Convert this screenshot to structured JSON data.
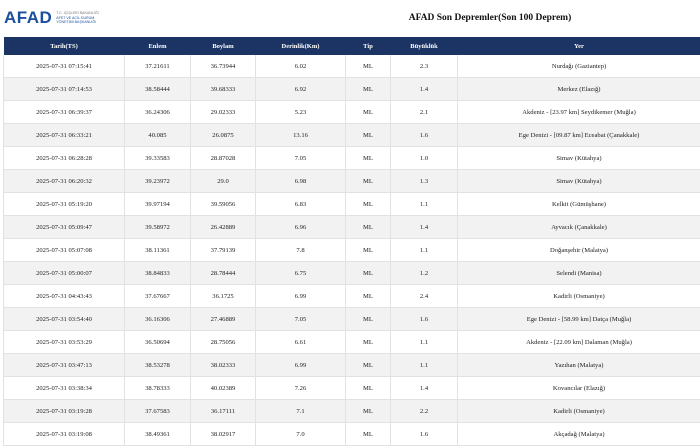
{
  "header": {
    "logo": {
      "mark": "AFAD",
      "lines": [
        "T.C. İÇİŞLERİ BAKANLIĞI",
        "AFET VE ACİL DURUM",
        "YÖNETİMİ BAŞKANLIĞI"
      ]
    },
    "title": "AFAD Son Depremler(Son 100 Deprem)"
  },
  "table": {
    "columns": [
      "Tarih(TS)",
      "Enlem",
      "Boylam",
      "Derinlik(Km)",
      "Tip",
      "Büyüklük",
      "Yer"
    ],
    "rows": [
      [
        "2025-07-31 07:15:41",
        "37.21611",
        "36.73944",
        "6.02",
        "ML",
        "2.3",
        "Nurdağı (Gaziantep)"
      ],
      [
        "2025-07-31 07:14:53",
        "38.58444",
        "39.68333",
        "6.92",
        "ML",
        "1.4",
        "Merkez (Elazığ)"
      ],
      [
        "2025-07-31 06:39:37",
        "36.24306",
        "29.02333",
        "5.23",
        "ML",
        "2.1",
        "Akdeniz - [23.97 km] Seydikemer (Muğla)"
      ],
      [
        "2025-07-31 06:33:21",
        "40.085",
        "26.0875",
        "13.16",
        "ML",
        "1.6",
        "Ege Denizi - [09.87 km] Eceabat (Çanakkale)"
      ],
      [
        "2025-07-31 06:28:28",
        "39.33583",
        "28.87028",
        "7.05",
        "ML",
        "1.0",
        "Simav (Kütahya)"
      ],
      [
        "2025-07-31 06:20:32",
        "39.23972",
        "29.0",
        "6.98",
        "ML",
        "1.3",
        "Simav (Kütahya)"
      ],
      [
        "2025-07-31 05:19:20",
        "39.97194",
        "39.59056",
        "6.83",
        "ML",
        "1.1",
        "Kelkit (Gümüşhane)"
      ],
      [
        "2025-07-31 05:09:47",
        "39.58972",
        "26.42889",
        "6.96",
        "ML",
        "1.4",
        "Ayvacık (Çanakkale)"
      ],
      [
        "2025-07-31 05:07:08",
        "38.11361",
        "37.79139",
        "7.8",
        "ML",
        "1.1",
        "Doğanşehir (Malatya)"
      ],
      [
        "2025-07-31 05:00:07",
        "38.84833",
        "28.78444",
        "6.75",
        "ML",
        "1.2",
        "Selendi (Manisa)"
      ],
      [
        "2025-07-31 04:43:43",
        "37.67667",
        "36.1725",
        "6.99",
        "ML",
        "2.4",
        "Kadirli (Osmaniye)"
      ],
      [
        "2025-07-31 03:54:40",
        "36.16306",
        "27.46889",
        "7.05",
        "ML",
        "1.6",
        "Ege Denizi - [58.99 km] Datça (Muğla)"
      ],
      [
        "2025-07-31 03:53:29",
        "36.50694",
        "28.75056",
        "6.61",
        "ML",
        "1.1",
        "Akdeniz - [22.09 km] Dalaman (Muğla)"
      ],
      [
        "2025-07-31 03:47:13",
        "38.53278",
        "38.02333",
        "6.99",
        "ML",
        "1.1",
        "Yazıhan (Malatya)"
      ],
      [
        "2025-07-31 03:38:34",
        "38.78333",
        "40.02389",
        "7.26",
        "ML",
        "1.4",
        "Kovancılar (Elazığ)"
      ],
      [
        "2025-07-31 03:19:28",
        "37.67583",
        "36.17111",
        "7.1",
        "ML",
        "2.2",
        "Kadirli (Osmaniye)"
      ],
      [
        "2025-07-31 03:19:08",
        "38.49361",
        "38.02917",
        "7.0",
        "ML",
        "1.6",
        "Akçadağ (Malatya)"
      ]
    ]
  }
}
